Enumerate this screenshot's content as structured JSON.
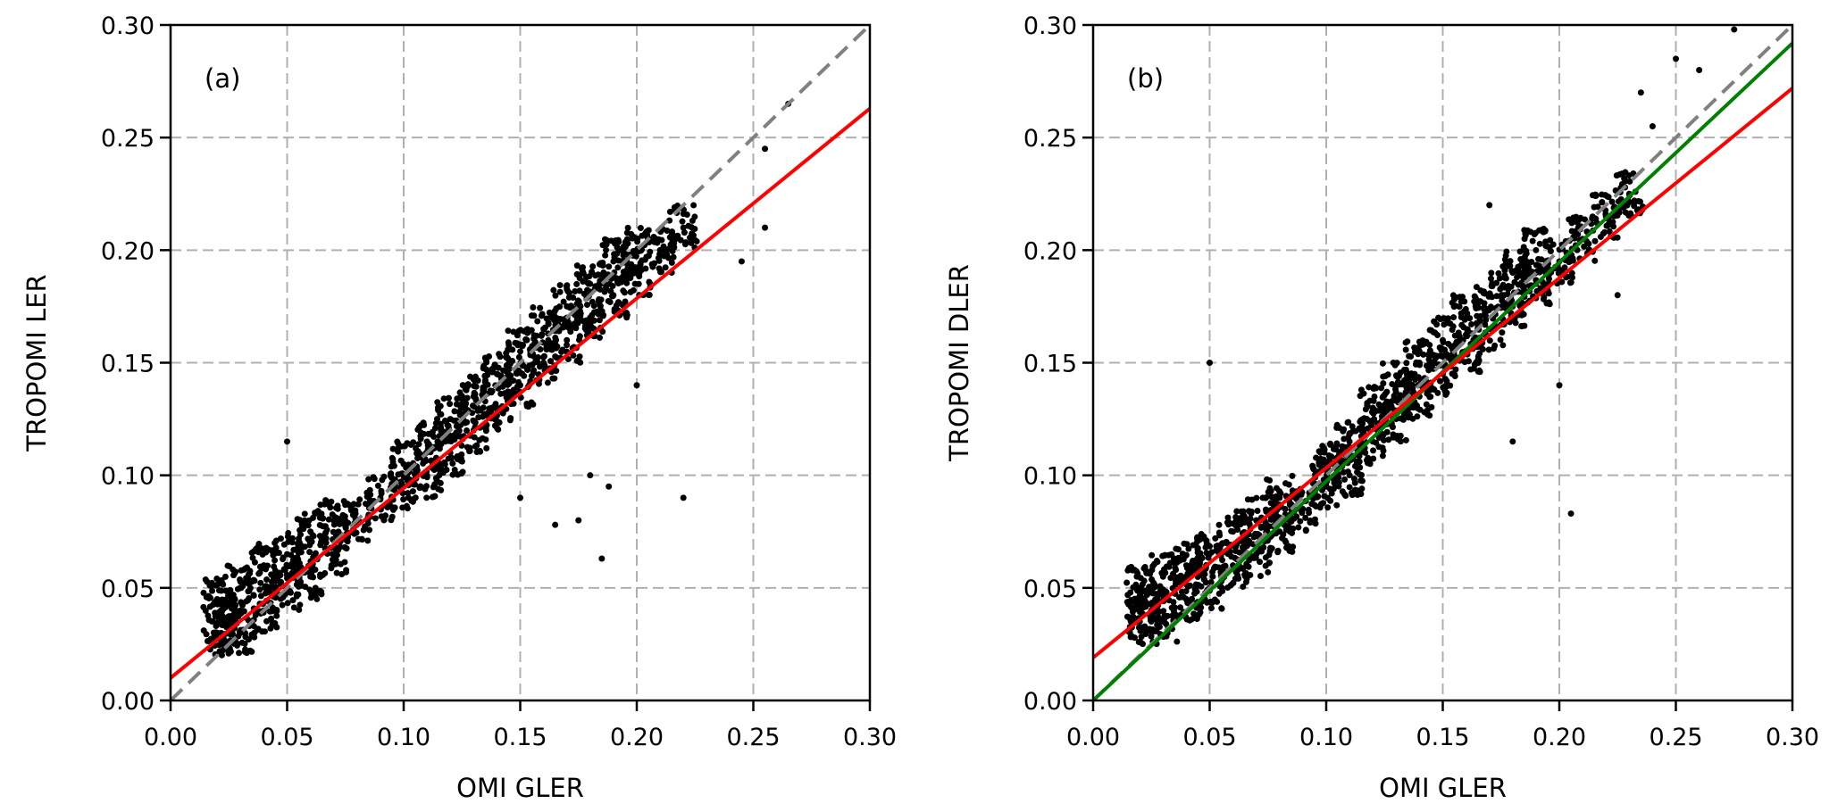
{
  "chart_data": [
    {
      "type": "scatter",
      "panel_label": "(a)",
      "xlabel": "OMI GLER",
      "ylabel": "TROPOMI LER",
      "xlim": [
        0,
        0.3
      ],
      "ylim": [
        0,
        0.3
      ],
      "xticks": [
        "0.00",
        "0.05",
        "0.10",
        "0.15",
        "0.20",
        "0.25",
        "0.30"
      ],
      "yticks": [
        "0.00",
        "0.05",
        "0.10",
        "0.15",
        "0.20",
        "0.25",
        "0.30"
      ],
      "grid": true,
      "point_color": "#000000",
      "lines": [
        {
          "kind": "1:1",
          "style": "dashed",
          "color": "#808080",
          "intercept": 0,
          "slope": 1
        },
        {
          "kind": "fit",
          "style": "solid",
          "color": "#ff0000",
          "intercept": 0.01,
          "slope": 0.843
        }
      ],
      "points": [
        [
          0.02,
          0.03
        ],
        [
          0.02,
          0.045
        ],
        [
          0.025,
          0.035
        ],
        [
          0.03,
          0.05
        ],
        [
          0.03,
          0.03
        ],
        [
          0.04,
          0.04
        ],
        [
          0.04,
          0.06
        ],
        [
          0.05,
          0.05
        ],
        [
          0.05,
          0.065
        ],
        [
          0.06,
          0.055
        ],
        [
          0.06,
          0.075
        ],
        [
          0.07,
          0.065
        ],
        [
          0.07,
          0.08
        ],
        [
          0.08,
          0.08
        ],
        [
          0.09,
          0.09
        ],
        [
          0.1,
          0.095
        ],
        [
          0.1,
          0.105
        ],
        [
          0.11,
          0.1
        ],
        [
          0.11,
          0.115
        ],
        [
          0.12,
          0.11
        ],
        [
          0.12,
          0.125
        ],
        [
          0.13,
          0.12
        ],
        [
          0.13,
          0.135
        ],
        [
          0.14,
          0.13
        ],
        [
          0.14,
          0.145
        ],
        [
          0.15,
          0.14
        ],
        [
          0.15,
          0.155
        ],
        [
          0.16,
          0.15
        ],
        [
          0.16,
          0.165
        ],
        [
          0.17,
          0.16
        ],
        [
          0.17,
          0.175
        ],
        [
          0.18,
          0.17
        ],
        [
          0.18,
          0.185
        ],
        [
          0.19,
          0.18
        ],
        [
          0.19,
          0.195
        ],
        [
          0.2,
          0.19
        ],
        [
          0.2,
          0.2
        ],
        [
          0.21,
          0.2
        ],
        [
          0.22,
          0.21
        ]
      ],
      "outliers": [
        [
          0.05,
          0.115
        ],
        [
          0.185,
          0.063
        ],
        [
          0.175,
          0.08
        ],
        [
          0.165,
          0.078
        ],
        [
          0.188,
          0.095
        ],
        [
          0.2,
          0.14
        ],
        [
          0.215,
          0.19
        ],
        [
          0.245,
          0.195
        ],
        [
          0.255,
          0.21
        ],
        [
          0.265,
          0.265
        ],
        [
          0.255,
          0.245
        ],
        [
          0.22,
          0.09
        ],
        [
          0.18,
          0.1
        ],
        [
          0.15,
          0.09
        ]
      ]
    },
    {
      "type": "scatter",
      "panel_label": "(b)",
      "xlabel": "OMI GLER",
      "ylabel": "TROPOMI DLER",
      "xlim": [
        0,
        0.3
      ],
      "ylim": [
        0,
        0.3
      ],
      "xticks": [
        "0.00",
        "0.05",
        "0.10",
        "0.15",
        "0.20",
        "0.25",
        "0.30"
      ],
      "yticks": [
        "0.00",
        "0.05",
        "0.10",
        "0.15",
        "0.20",
        "0.25",
        "0.30"
      ],
      "grid": true,
      "point_color": "#000000",
      "lines": [
        {
          "kind": "1:1",
          "style": "dashed",
          "color": "#808080",
          "intercept": 0,
          "slope": 1
        },
        {
          "kind": "fit",
          "style": "solid",
          "color": "#008000",
          "intercept": 0.0,
          "slope": 0.973
        },
        {
          "kind": "fit",
          "style": "solid",
          "color": "#ff0000",
          "intercept": 0.019,
          "slope": 0.843
        }
      ],
      "points": [
        [
          0.02,
          0.035
        ],
        [
          0.02,
          0.05
        ],
        [
          0.025,
          0.04
        ],
        [
          0.03,
          0.055
        ],
        [
          0.03,
          0.035
        ],
        [
          0.04,
          0.045
        ],
        [
          0.04,
          0.06
        ],
        [
          0.05,
          0.05
        ],
        [
          0.05,
          0.065
        ],
        [
          0.06,
          0.06
        ],
        [
          0.06,
          0.075
        ],
        [
          0.07,
          0.065
        ],
        [
          0.07,
          0.08
        ],
        [
          0.08,
          0.075
        ],
        [
          0.08,
          0.09
        ],
        [
          0.09,
          0.085
        ],
        [
          0.1,
          0.095
        ],
        [
          0.1,
          0.105
        ],
        [
          0.11,
          0.1
        ],
        [
          0.11,
          0.115
        ],
        [
          0.12,
          0.115
        ],
        [
          0.12,
          0.13
        ],
        [
          0.13,
          0.125
        ],
        [
          0.13,
          0.14
        ],
        [
          0.14,
          0.135
        ],
        [
          0.14,
          0.15
        ],
        [
          0.15,
          0.145
        ],
        [
          0.15,
          0.16
        ],
        [
          0.16,
          0.155
        ],
        [
          0.16,
          0.17
        ],
        [
          0.17,
          0.165
        ],
        [
          0.17,
          0.18
        ],
        [
          0.18,
          0.175
        ],
        [
          0.18,
          0.19
        ],
        [
          0.19,
          0.185
        ],
        [
          0.19,
          0.2
        ],
        [
          0.2,
          0.195
        ],
        [
          0.21,
          0.205
        ],
        [
          0.22,
          0.215
        ],
        [
          0.23,
          0.225
        ]
      ],
      "outliers": [
        [
          0.05,
          0.15
        ],
        [
          0.205,
          0.083
        ],
        [
          0.25,
          0.285
        ],
        [
          0.26,
          0.28
        ],
        [
          0.275,
          0.298
        ],
        [
          0.235,
          0.27
        ],
        [
          0.24,
          0.255
        ],
        [
          0.18,
          0.115
        ],
        [
          0.2,
          0.14
        ],
        [
          0.225,
          0.18
        ],
        [
          0.17,
          0.22
        ]
      ]
    }
  ]
}
